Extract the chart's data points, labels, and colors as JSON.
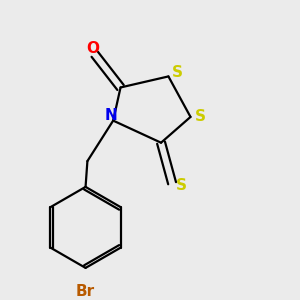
{
  "bg_color": "#ebebeb",
  "atom_colors": {
    "C": "#000000",
    "N": "#0000ee",
    "O": "#ff0000",
    "S": "#cccc00",
    "Br": "#b85a00"
  },
  "bond_color": "#000000",
  "bond_width": 1.6,
  "figsize": [
    3.0,
    3.0
  ],
  "dpi": 100
}
